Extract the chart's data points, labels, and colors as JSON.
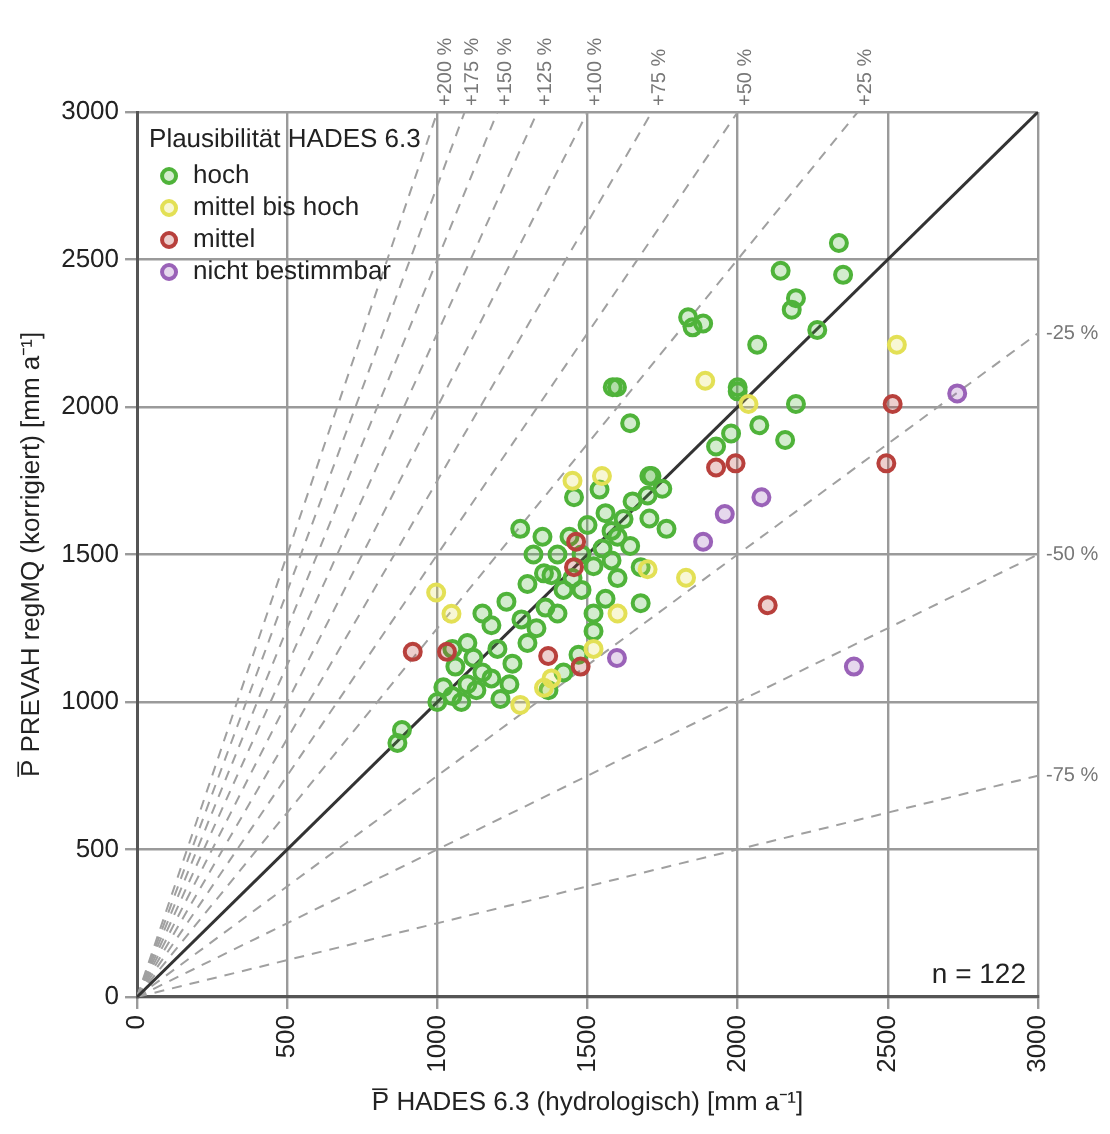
{
  "chart_data": {
    "type": "scatter",
    "xlabel": "P̅ HADES 6.3 (hydrologisch) [mm a⁻¹]",
    "ylabel": "P̅ PREVAH regMQ (korrigiert) [mm a⁻¹]",
    "legend_title": "Plausibilität HADES 6.3",
    "legend": "top left",
    "grid": true,
    "marker": "circle",
    "xlim": [
      0,
      3000
    ],
    "ylim": [
      0,
      3000
    ],
    "xticks": [
      0,
      500,
      1000,
      1500,
      2000,
      2500,
      3000
    ],
    "yticks": [
      0,
      500,
      1000,
      1500,
      2000,
      2500,
      3000
    ],
    "annotations": [
      "n = 122"
    ],
    "series": [
      {
        "name": "hoch",
        "color": "#4fb33a",
        "x": [
          2337,
          2351,
          2143,
          2194,
          2180,
          1835,
          1885,
          1850,
          2265,
          2065,
          1584,
          2000,
          2194,
          1598,
          1642,
          1713,
          1276,
          1455,
          1355,
          2000,
          1978,
          2072,
          2158,
          1928,
          1706,
          1749,
          1706,
          1763,
          1642,
          1677,
          1677,
          882,
          867,
          1000,
          1020,
          1050,
          1080,
          1100,
          1130,
          1150,
          1180,
          1210,
          1240,
          1060,
          1120,
          1200,
          1250,
          1300,
          1280,
          1330,
          1360,
          1400,
          1420,
          1380,
          1450,
          1480,
          1520,
          1550,
          1580,
          1600,
          1620,
          1560,
          1500,
          1440,
          1400,
          1350,
          1320,
          1480,
          1520,
          1560,
          1600,
          1650,
          1700,
          1540,
          1180,
          1150,
          1230,
          1100,
          1050,
          1300,
          1370,
          1420,
          1470,
          1520,
          1580
        ],
        "values": [
          2556,
          2448,
          2462,
          2369,
          2330,
          2304,
          2283,
          2270,
          2261,
          2211,
          2067,
          2067,
          2010,
          2067,
          1945,
          1766,
          1587,
          1694,
          1436,
          2053,
          1910,
          1938,
          1888,
          1866,
          1766,
          1723,
          1622,
          1587,
          1529,
          1457,
          1335,
          905,
          861,
          1000,
          1050,
          1020,
          1000,
          1060,
          1040,
          1100,
          1080,
          1010,
          1060,
          1120,
          1150,
          1180,
          1130,
          1200,
          1280,
          1250,
          1320,
          1300,
          1380,
          1430,
          1420,
          1500,
          1460,
          1520,
          1480,
          1560,
          1620,
          1640,
          1600,
          1560,
          1500,
          1560,
          1500,
          1380,
          1300,
          1350,
          1420,
          1680,
          1700,
          1720,
          1260,
          1300,
          1340,
          1200,
          1180,
          1400,
          1040,
          1100,
          1160,
          1240,
          1580
        ]
      },
      {
        "name": "mittel bis hoch",
        "color": "#e3e055",
        "x": [
          2530,
          1892,
          2036,
          1548,
          996,
          1047,
          1355,
          1276,
          1828,
          1450,
          1520,
          1600,
          1700,
          1380
        ],
        "values": [
          2211,
          2089,
          2010,
          1766,
          1371,
          1299,
          1048,
          990,
          1421,
          1750,
          1180,
          1300,
          1450,
          1080
        ]
      },
      {
        "name": "mittel",
        "color": "#b8403c",
        "x": [
          2516,
          1462,
          1455,
          918,
          1032,
          1369,
          1477,
          2495,
          1993,
          1928,
          2100
        ],
        "values": [
          2010,
          1543,
          1457,
          1170,
          1170,
          1156,
          1120,
          1809,
          1809,
          1795,
          1328
        ]
      },
      {
        "name": "nicht bestimmbar",
        "color": "#9a62b8",
        "x": [
          2731,
          1598,
          2079,
          1957,
          1885,
          2387
        ],
        "values": [
          2046,
          1149,
          1694,
          1637,
          1543,
          1120
        ]
      },
      {
        "type": "line",
        "color": "#333333",
        "line_style": "solid",
        "marker": "none",
        "x": [
          0,
          3000
        ],
        "values": [
          0,
          3000
        ]
      },
      {
        "type": "line",
        "name": "+200 %",
        "color": "#a0a0a0",
        "line_style": "dashed",
        "marker": "none",
        "x": [
          0,
          1000
        ],
        "values": [
          0,
          3000
        ]
      },
      {
        "type": "line",
        "name": "+175 %",
        "color": "#a0a0a0",
        "line_style": "dashed",
        "marker": "none",
        "x": [
          0,
          1091
        ],
        "values": [
          0,
          3000
        ]
      },
      {
        "type": "line",
        "name": "+150 %",
        "color": "#a0a0a0",
        "line_style": "dashed",
        "marker": "none",
        "x": [
          0,
          1200
        ],
        "values": [
          0,
          3000
        ]
      },
      {
        "type": "line",
        "name": "+125 %",
        "color": "#a0a0a0",
        "line_style": "dashed",
        "marker": "none",
        "x": [
          0,
          1333
        ],
        "values": [
          0,
          3000
        ]
      },
      {
        "type": "line",
        "name": "+100 %",
        "color": "#a0a0a0",
        "line_style": "dashed",
        "marker": "none",
        "x": [
          0,
          1500
        ],
        "values": [
          0,
          3000
        ]
      },
      {
        "type": "line",
        "name": "+75 %",
        "color": "#a0a0a0",
        "line_style": "dashed",
        "marker": "none",
        "x": [
          0,
          1714
        ],
        "values": [
          0,
          3000
        ]
      },
      {
        "type": "line",
        "name": "+50 %",
        "color": "#a0a0a0",
        "line_style": "dashed",
        "marker": "none",
        "x": [
          0,
          2000
        ],
        "values": [
          0,
          3000
        ]
      },
      {
        "type": "line",
        "name": "+25 %",
        "color": "#a0a0a0",
        "line_style": "dashed",
        "marker": "none",
        "x": [
          0,
          2400
        ],
        "values": [
          0,
          3000
        ]
      },
      {
        "type": "line",
        "name": "-25 %",
        "color": "#a0a0a0",
        "line_style": "dashed",
        "marker": "none",
        "x": [
          0,
          3000
        ],
        "values": [
          0,
          2250
        ]
      },
      {
        "type": "line",
        "name": "-50 %",
        "color": "#a0a0a0",
        "line_style": "dashed",
        "marker": "none",
        "x": [
          0,
          3000
        ],
        "values": [
          0,
          1500
        ]
      },
      {
        "type": "line",
        "name": "-75 %",
        "color": "#a0a0a0",
        "line_style": "dashed",
        "marker": "none",
        "x": [
          0,
          3000
        ],
        "values": [
          0,
          750
        ]
      }
    ]
  }
}
